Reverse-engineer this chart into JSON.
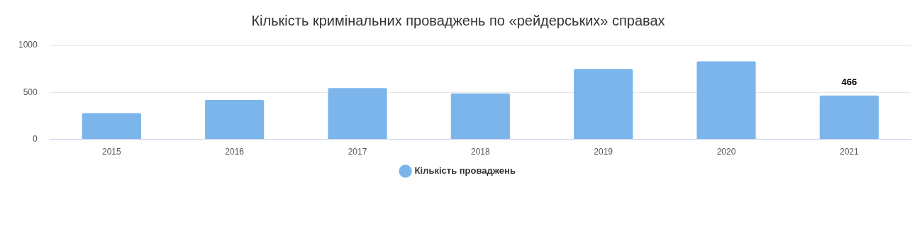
{
  "chart_data": {
    "type": "bar",
    "title": "Кількість кримінальних проваджень по «рейдерських» справах",
    "categories": [
      "2015",
      "2016",
      "2017",
      "2018",
      "2019",
      "2020",
      "2021"
    ],
    "series": [
      {
        "name": "Кількість проваджень",
        "color": "#7cb5ec",
        "values": [
          280,
          420,
          545,
          490,
          750,
          830,
          466
        ],
        "value_labels": [
          null,
          null,
          null,
          null,
          null,
          null,
          "466"
        ]
      }
    ],
    "ylim": [
      0,
      1000
    ],
    "yticks": [
      0,
      500,
      1000
    ],
    "grid": "y",
    "legend": "bottom"
  }
}
